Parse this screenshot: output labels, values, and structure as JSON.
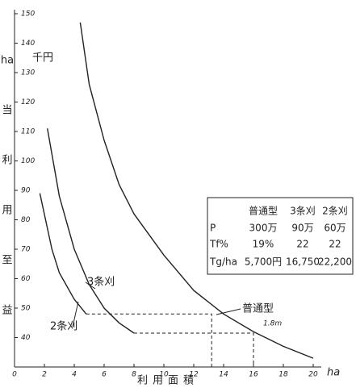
{
  "chart_data": {
    "type": "line",
    "y_unit": "千円",
    "y_label_chars": [
      "ha",
      "当",
      "利",
      "用",
      "至",
      "益"
    ],
    "x_label": "利用面積",
    "x_unit": "ha",
    "xlim": [
      0,
      20
    ],
    "xticks": [
      0,
      2,
      4,
      6,
      8,
      10,
      12,
      14,
      16,
      18,
      20
    ],
    "ylim": [
      30,
      150
    ],
    "yticks": [
      40,
      50,
      60,
      70,
      80,
      90,
      100,
      110,
      120,
      130,
      140,
      150
    ],
    "series": [
      {
        "name": "普通型",
        "color": "#222",
        "x": [
          4.4,
          5,
          6,
          7,
          8,
          10,
          12,
          14,
          16,
          18,
          20
        ],
        "values": [
          147,
          126,
          107,
          92,
          82,
          68,
          56,
          48,
          42,
          37,
          33
        ]
      },
      {
        "name": "3条刈",
        "color": "#222",
        "x": [
          2.2,
          3,
          4,
          5,
          6,
          7,
          8
        ],
        "values": [
          111,
          88,
          70,
          58,
          50,
          45,
          41.5
        ]
      },
      {
        "name": "2条刈",
        "color": "#222",
        "x": [
          1.7,
          2.5,
          3,
          4,
          4.8
        ],
        "values": [
          89,
          70,
          62,
          53,
          48
        ]
      }
    ],
    "reference_lines": [
      {
        "x": [
          4.8,
          13.2,
          13.2
        ],
        "values": [
          48,
          48,
          30
        ]
      },
      {
        "x": [
          8,
          16,
          16
        ],
        "values": [
          41.5,
          41.5,
          30
        ]
      }
    ],
    "annotation_width": "1.8m",
    "table": {
      "header": [
        "普通型",
        "3条刈",
        "2条刈"
      ],
      "rows": [
        [
          "P",
          "300万",
          "90万",
          "60万"
        ],
        [
          "Tf%",
          "19%",
          "22",
          "22"
        ],
        [
          "Tg/ha",
          "5,700円",
          "16,750",
          "22,200"
        ]
      ]
    }
  }
}
